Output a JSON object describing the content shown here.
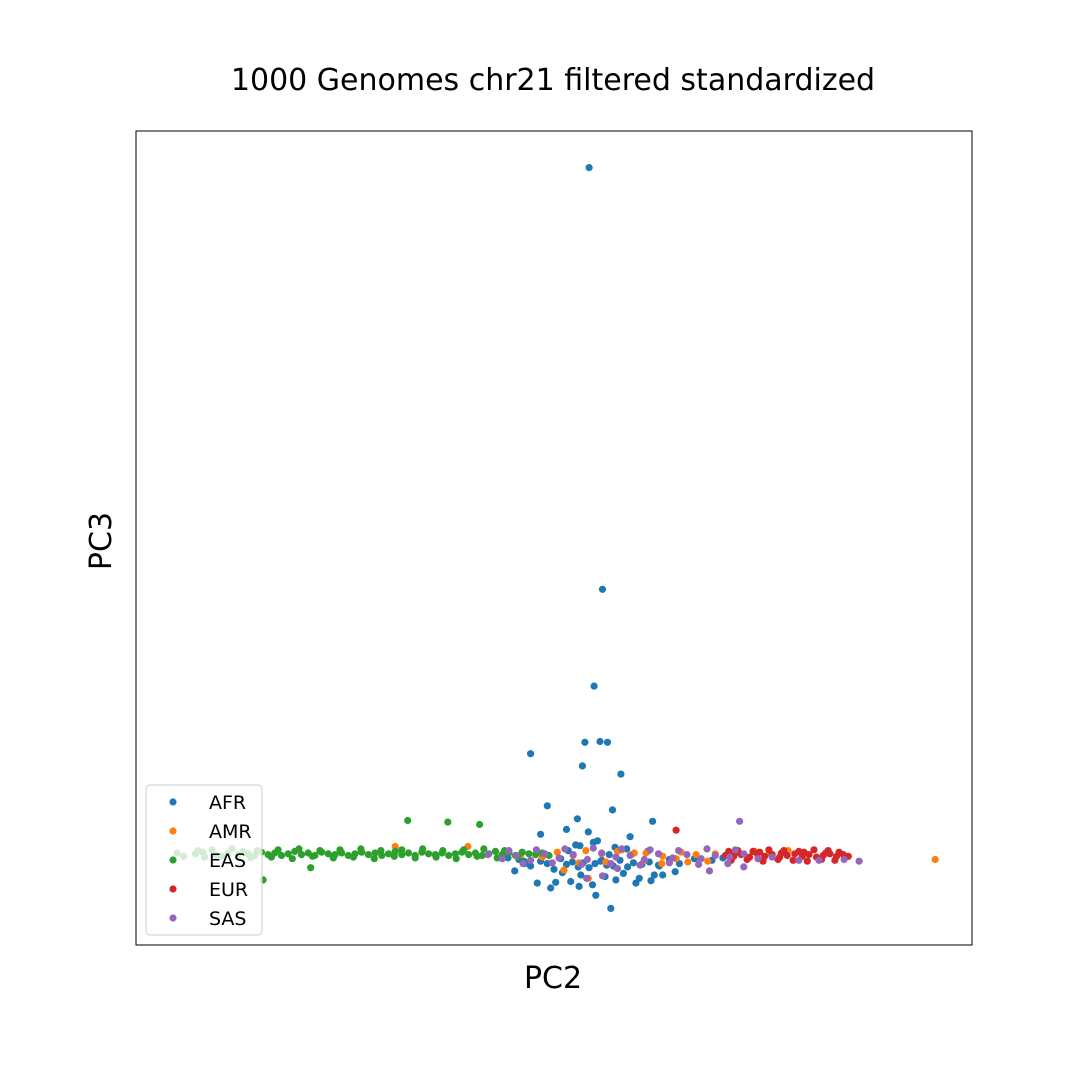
{
  "chart_data": {
    "type": "scatter",
    "title": "1000 Genomes chr21 filtered standardized",
    "xlabel": "PC2",
    "ylabel": "PC3",
    "xlim": [
      0,
      100
    ],
    "ylim": [
      0,
      100
    ],
    "ticks_shown": false,
    "grid": false,
    "legend_position": "lower-left",
    "series": [
      {
        "name": "AFR",
        "color": "#1f77b4",
        "x": [
          54.2,
          55.8,
          54.8,
          53.7,
          55.5,
          56.4,
          53.4,
          58.0,
          47.2,
          61.8,
          49.2,
          48.4,
          59.1,
          52.8,
          53.1,
          57.0,
          54.1,
          51.5,
          55.7,
          62.5,
          61.2,
          44.5,
          45.8,
          46.4,
          46.5,
          47.2,
          48.4,
          49.2,
          50.0,
          50.8,
          51.5,
          52.2,
          52.9,
          53.5,
          54.2,
          54.9,
          55.6,
          56.3,
          57.1,
          57.9,
          58.8,
          59.5,
          60.5,
          61.4,
          62.6,
          63.8,
          65.0,
          66.8,
          68.9,
          70.2,
          51.0,
          53.2,
          56.1,
          58.3,
          60.2,
          62.0,
          50.2,
          52.0,
          54.6,
          57.4,
          59.8,
          61.6,
          55.0,
          56.8,
          53.0,
          48.0,
          49.6,
          64.5,
          63.0,
          45.3,
          52.6,
          58.7,
          54.7,
          57.3,
          51.7,
          55.2,
          56.6
        ],
        "y": [
          95.5,
          43.7,
          31.8,
          24.9,
          25.0,
          24.9,
          22.0,
          21.0,
          23.5,
          15.2,
          17.1,
          13.6,
          13.3,
          15.5,
          12.2,
          16.6,
          13.9,
          14.2,
          10.4,
          9.8,
          11.5,
          10.7,
          10.5,
          10.3,
          10.0,
          9.7,
          10.3,
          10.0,
          9.3,
          10.6,
          9.9,
          10.2,
          9.6,
          10.1,
          9.5,
          10.0,
          10.3,
          9.8,
          9.7,
          10.4,
          9.6,
          10.1,
          9.9,
          10.2,
          9.7,
          10.5,
          10.0,
          10.6,
          10.4,
          10.7,
          8.9,
          8.6,
          8.4,
          8.8,
          8.2,
          8.6,
          7.7,
          7.8,
          7.4,
          8.0,
          7.6,
          7.9,
          6.1,
          4.5,
          7.2,
          7.6,
          7.0,
          9.0,
          8.6,
          9.1,
          12.3,
          11.8,
          12.6,
          12.0,
          11.6,
          12.8,
          11.1
        ]
      },
      {
        "name": "AMR",
        "color": "#ff7f0e",
        "x": [
          95.6,
          51.2,
          39.7,
          31.0,
          54.1,
          62.9,
          59.6,
          46.0,
          48.6,
          50.4,
          52.3,
          53.8,
          55.7,
          57.6,
          59.3,
          61.0,
          63.0,
          65.2,
          67.0,
          69.3,
          71.5,
          74.0,
          75.8,
          78.0,
          56.2,
          60.8,
          64.6,
          68.4,
          53.0,
          58.1,
          66.0
        ],
        "y": [
          10.5,
          9.2,
          12.1,
          12.1,
          8.2,
          10.0,
          11.3,
          11.0,
          10.8,
          11.4,
          11.0,
          11.6,
          11.2,
          11.5,
          11.1,
          11.3,
          10.9,
          11.4,
          11.1,
          11.2,
          11.0,
          11.5,
          11.3,
          11.6,
          10.2,
          10.4,
          10.6,
          10.3,
          10.1,
          11.7,
          10.2
        ]
      },
      {
        "name": "EAS",
        "color": "#2ca02c",
        "x": [
          4.9,
          5.7,
          7.1,
          8.0,
          9.6,
          11.0,
          12.2,
          12.8,
          13.4,
          14.2,
          15.0,
          15.8,
          16.6,
          17.4,
          18.2,
          19.0,
          19.8,
          20.6,
          21.4,
          22.2,
          23.0,
          23.8,
          24.6,
          25.4,
          26.2,
          27.0,
          27.8,
          28.6,
          29.4,
          30.2,
          31.0,
          31.8,
          32.6,
          33.4,
          34.2,
          35.0,
          35.8,
          36.6,
          37.4,
          38.2,
          39.0,
          39.8,
          40.6,
          41.4,
          42.2,
          43.0,
          43.8,
          44.6,
          45.4,
          46.2,
          47.0,
          47.8,
          48.6,
          49.4,
          8.2,
          10.3,
          13.7,
          16.2,
          18.7,
          21.1,
          23.6,
          26.0,
          28.5,
          30.9,
          33.4,
          35.9,
          38.3,
          40.8,
          43.2,
          45.7,
          7.4,
          9.1,
          11.5,
          14.5,
          17.0,
          19.5,
          22.0,
          24.4,
          26.9,
          29.3,
          31.8,
          34.3,
          36.7,
          39.2,
          41.6,
          44.1,
          20.9,
          32.5,
          15.2,
          37.3,
          41.1
        ],
        "y": [
          11.3,
          10.9,
          11.2,
          11.4,
          11.0,
          11.3,
          11.1,
          11.5,
          11.2,
          11.0,
          11.4,
          11.1,
          11.3,
          11.0,
          11.2,
          11.5,
          11.1,
          11.3,
          11.0,
          11.4,
          11.2,
          11.1,
          11.3,
          11.0,
          11.2,
          11.4,
          11.1,
          11.3,
          11.0,
          11.2,
          11.5,
          11.1,
          11.3,
          11.0,
          11.4,
          11.2,
          11.1,
          11.3,
          11.0,
          11.2,
          11.4,
          11.1,
          11.3,
          11.0,
          11.2,
          11.5,
          11.1,
          11.3,
          11.0,
          11.4,
          11.2,
          11.1,
          11.3,
          11.0,
          10.8,
          10.9,
          10.7,
          10.8,
          10.6,
          10.9,
          10.7,
          10.8,
          10.6,
          10.9,
          10.7,
          10.8,
          10.6,
          10.9,
          10.7,
          10.8,
          11.6,
          11.7,
          11.8,
          11.6,
          11.7,
          11.8,
          11.6,
          11.7,
          11.8,
          11.6,
          11.7,
          11.8,
          11.6,
          11.7,
          11.8,
          11.6,
          9.5,
          15.3,
          8.0,
          15.1,
          14.8
        ]
      },
      {
        "name": "EUR",
        "color": "#d62728",
        "x": [
          64.6,
          70.5,
          71.5,
          72.4,
          73.4,
          74.3,
          75.2,
          76.1,
          77.0,
          77.9,
          78.8,
          79.7,
          80.5,
          81.4,
          82.2,
          83.0,
          83.8,
          84.6,
          85.2,
          70.9,
          72.0,
          73.8,
          75.7,
          77.5,
          79.3,
          81.1,
          82.8,
          71.2,
          73.1,
          75.0,
          76.8,
          78.6,
          80.3,
          82.0,
          83.6,
          71.7,
          74.6,
          77.2,
          79.9,
          82.5,
          84.1
        ],
        "y": [
          14.1,
          11.0,
          10.9,
          11.1,
          10.8,
          11.2,
          10.9,
          11.1,
          10.8,
          11.0,
          11.2,
          10.9,
          11.1,
          10.8,
          11.0,
          11.2,
          10.9,
          11.1,
          10.9,
          11.5,
          11.6,
          11.5,
          11.7,
          11.6,
          11.5,
          11.7,
          11.6,
          10.4,
          10.5,
          10.3,
          10.5,
          10.4,
          10.3,
          10.5,
          10.4,
          11.3,
          11.4,
          11.3,
          11.4,
          11.3,
          11.4
        ]
      },
      {
        "name": "SAS",
        "color": "#9467bd",
        "x": [
          72.2,
          42.1,
          43.8,
          45.5,
          47.2,
          48.9,
          50.6,
          52.3,
          54.0,
          55.7,
          57.4,
          59.1,
          60.8,
          62.5,
          64.2,
          65.9,
          67.6,
          69.3,
          71.0,
          72.7,
          74.4,
          76.1,
          79.3,
          81.7,
          84.7,
          86.5,
          44.6,
          47.9,
          51.3,
          54.7,
          58.1,
          61.5,
          64.9,
          68.3,
          71.7,
          46.3,
          49.8,
          53.3,
          56.8,
          60.3,
          63.8,
          67.3,
          70.8,
          55.8,
          53.9,
          68.6,
          72.7,
          57.6
        ],
        "y": [
          15.2,
          11.1,
          10.6,
          11.0,
          10.4,
          11.2,
          10.7,
          11.1,
          10.5,
          11.3,
          10.8,
          11.0,
          10.5,
          11.2,
          10.7,
          11.1,
          10.6,
          11.0,
          10.8,
          11.2,
          10.6,
          10.8,
          10.4,
          10.4,
          10.5,
          10.3,
          11.6,
          11.7,
          11.8,
          11.9,
          11.8,
          11.7,
          11.6,
          11.8,
          11.7,
          10.0,
          10.1,
          9.9,
          10.0,
          9.8,
          10.1,
          9.9,
          10.0,
          8.5,
          8.2,
          9.1,
          9.6,
          9.4
        ]
      }
    ]
  }
}
